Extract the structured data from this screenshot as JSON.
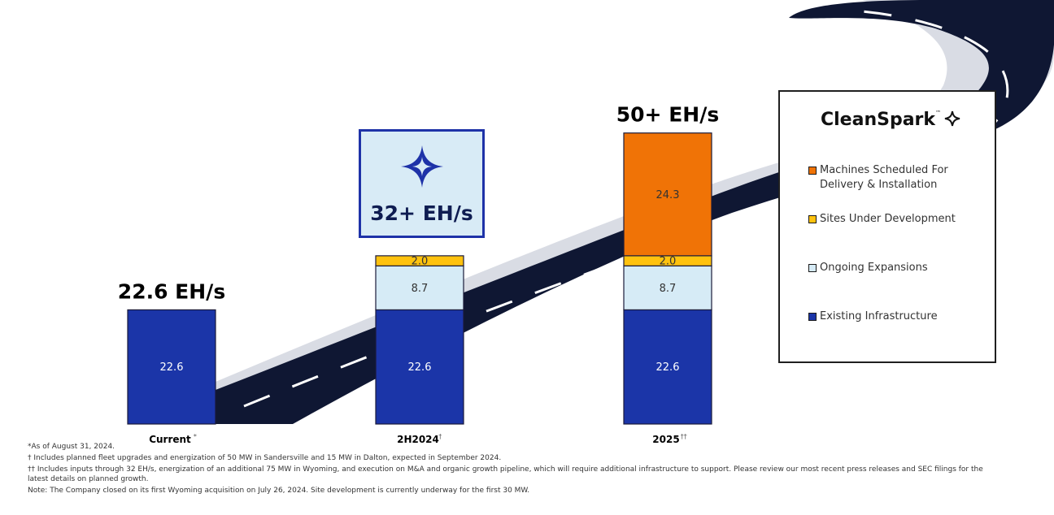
{
  "chart_data": {
    "type": "bar",
    "stacked": true,
    "categories": [
      "Current",
      "2H2024",
      "2025"
    ],
    "category_marks": [
      "*",
      "†",
      "††"
    ],
    "series": [
      {
        "name": "Existing Infrastructure",
        "color": "#1b35a8",
        "values": [
          22.6,
          22.6,
          22.6
        ],
        "labels": [
          "22.6",
          "22.6",
          "22.6"
        ]
      },
      {
        "name": "Ongoing Expansions",
        "color": "#d6ebf6",
        "values": [
          0,
          8.7,
          8.7
        ],
        "labels": [
          "",
          "8.7",
          "8.7"
        ]
      },
      {
        "name": "Sites Under Development",
        "color": "#ffc20e",
        "values": [
          0,
          2.0,
          2.0
        ],
        "labels": [
          "",
          "2.0",
          "2.0"
        ]
      },
      {
        "name": "Machines Scheduled For Delivery & Installation",
        "color": "#f07306",
        "values": [
          0,
          0,
          24.3
        ],
        "labels": [
          "",
          "",
          "24.3"
        ]
      }
    ],
    "totals": [
      "22.6 EH/s",
      "",
      "50+ EH/s"
    ],
    "callout": "32+ EH/s",
    "legend_position": "right",
    "grid": false
  },
  "brand": {
    "name": "CleanSpark",
    "tm": "™"
  },
  "legend_order": [
    3,
    2,
    1,
    0
  ],
  "footnotes": [
    "*As of August 31, 2024.",
    "† Includes planned fleet upgrades and energization of 50 MW in Sandersville and 15 MW in Dalton, expected in September 2024.",
    "†† Includes inputs through 32 EH/s, energization of an additional 75 MW in Wyoming, and execution on M&A and organic growth pipeline, which will require additional infrastructure to support. Please review our most recent press releases and SEC filings for the latest details on planned growth.",
    "Note: The Company closed on its first Wyoming acquisition on July 26, 2024. Site development is currently underway for the first 30 MW."
  ],
  "colors": {
    "road": "#0f1733",
    "road_edge": "#cfd3de",
    "road_marking": "#ffffff",
    "navy": "#0f1d52",
    "accent": "#1e32a8"
  }
}
